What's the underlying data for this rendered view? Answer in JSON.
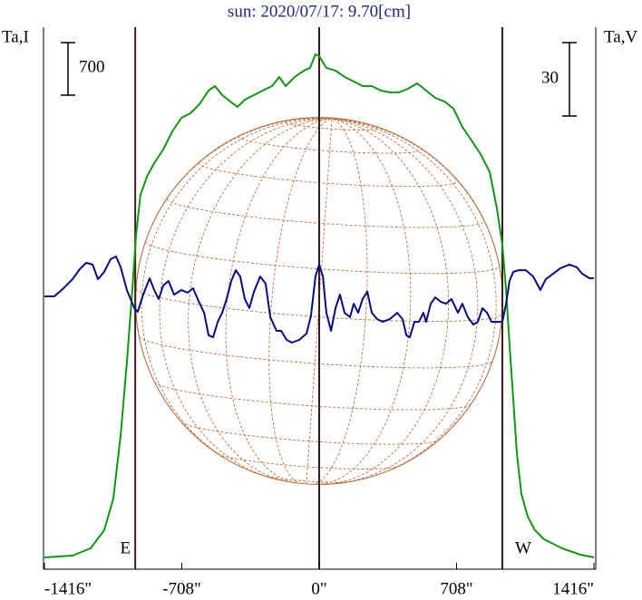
{
  "chart_data": {
    "type": "line",
    "title": "sun: 2020/07/17: 9.70[cm]",
    "y_label": "Ta,I",
    "y2_label": "Ta,V",
    "xlim": [
      -1416,
      1416
    ],
    "xticks": [
      {
        "value": -1416,
        "label": "-1416\""
      },
      {
        "value": -708,
        "label": "-708\""
      },
      {
        "value": 0,
        "label": "0\""
      },
      {
        "value": 708,
        "label": "708\""
      },
      {
        "value": 1416,
        "label": "1416\""
      }
    ],
    "ylim": [
      -157,
      7060
    ],
    "y2lim": [
      -111.5,
      110
    ],
    "scale_bars": [
      {
        "value": 700,
        "axis": "y"
      },
      {
        "value": 30,
        "axis": "y2"
      }
    ],
    "vlines": [
      {
        "value": -948,
        "label": "E"
      },
      {
        "value": 0
      },
      {
        "value": 944,
        "label": "W"
      }
    ],
    "sun_radius": 946,
    "series": [
      {
        "name": "Ta,I",
        "color": "#129512",
        "axis": "y",
        "x": [
          -1416,
          -1271,
          -1178,
          -1108,
          -1061,
          -1023,
          -991,
          -963,
          -944,
          -921,
          -888,
          -850,
          -804,
          -757,
          -710,
          -664,
          -617,
          -570,
          -537,
          -500,
          -453,
          -421,
          -383,
          -336,
          -290,
          -243,
          -206,
          -173,
          -126,
          -79,
          -47,
          -19,
          0,
          37,
          84,
          131,
          178,
          224,
          271,
          318,
          364,
          411,
          458,
          505,
          551,
          598,
          645,
          692,
          738,
          785,
          832,
          879,
          916,
          944,
          963,
          981,
          1000,
          1019,
          1042,
          1075,
          1112,
          1159,
          1252,
          1346,
          1416
        ],
        "values": [
          0,
          24,
          121,
          362,
          784,
          1629,
          2595,
          3561,
          4285,
          4828,
          5069,
          5250,
          5431,
          5672,
          5853,
          5914,
          6035,
          6216,
          6276,
          6156,
          6059,
          5999,
          6095,
          6156,
          6216,
          6276,
          6397,
          6276,
          6397,
          6482,
          6518,
          6699,
          6675,
          6518,
          6482,
          6397,
          6337,
          6276,
          6276,
          6216,
          6192,
          6192,
          6240,
          6313,
          6216,
          6119,
          6071,
          5975,
          5733,
          5552,
          5371,
          5130,
          4647,
          4164,
          3561,
          2836,
          2112,
          1388,
          845,
          543,
          362,
          241,
          121,
          36,
          0
        ]
      },
      {
        "name": "Ta,V",
        "color": "#0a0a80",
        "axis": "y2",
        "x": [
          -1416,
          -1365,
          -1318,
          -1271,
          -1234,
          -1201,
          -1168,
          -1140,
          -1108,
          -1075,
          -1047,
          -1023,
          -991,
          -953,
          -935,
          -907,
          -874,
          -850,
          -827,
          -804,
          -776,
          -748,
          -710,
          -678,
          -650,
          -626,
          -593,
          -570,
          -547,
          -523,
          -500,
          -477,
          -453,
          -430,
          -407,
          -383,
          -360,
          -336,
          -304,
          -276,
          -252,
          -220,
          -196,
          -168,
          -140,
          -103,
          -65,
          -42,
          -19,
          0,
          19,
          37,
          61,
          84,
          107,
          131,
          159,
          178,
          201,
          224,
          248,
          271,
          299,
          327,
          364,
          402,
          430,
          449,
          467,
          491,
          514,
          537,
          551,
          575,
          598,
          626,
          654,
          682,
          715,
          738,
          766,
          794,
          818,
          841,
          865,
          888,
          916,
          944,
          963,
          981,
          1000,
          1028,
          1065,
          1103,
          1140,
          1168,
          1206,
          1243,
          1290,
          1327,
          1355,
          1393,
          1416
        ],
        "values": [
          0,
          0,
          3.3,
          7.0,
          11.1,
          13.7,
          13.0,
          7.0,
          10.0,
          15.2,
          16.3,
          11.9,
          2.6,
          -4.8,
          -6.3,
          0.7,
          7.4,
          2.6,
          -1.1,
          4.4,
          6.3,
          0.7,
          2.6,
          1.5,
          3.3,
          -1.1,
          -6.7,
          -15.9,
          -16.7,
          -10.4,
          -6.7,
          -1.1,
          6.3,
          10.7,
          8.1,
          -1.1,
          -4.8,
          1.9,
          8.1,
          5.2,
          -8.5,
          -14.1,
          -14.1,
          -17.8,
          -18.9,
          -17.8,
          -15.2,
          -7.8,
          8.1,
          13.0,
          8.1,
          -6.7,
          -14.1,
          -4.8,
          0.7,
          -6.7,
          -8.5,
          -3.0,
          -6.7,
          -1.1,
          1.9,
          -6.7,
          -9.3,
          -10.4,
          -9.3,
          -6.7,
          -9.3,
          -15.9,
          -16.7,
          -10.4,
          -10.4,
          -6.7,
          -10.4,
          -3.0,
          -0.4,
          -2.2,
          -3.0,
          -1.1,
          -6.7,
          -3.0,
          -8.5,
          -11.5,
          -10.4,
          -4.8,
          -6.7,
          -10.4,
          -10.4,
          -10.4,
          -3.0,
          6.3,
          10.0,
          10.7,
          10.7,
          8.1,
          2.6,
          7.0,
          9.3,
          11.5,
          13.0,
          11.9,
          9.3,
          7.4,
          7.4
        ]
      }
    ]
  }
}
